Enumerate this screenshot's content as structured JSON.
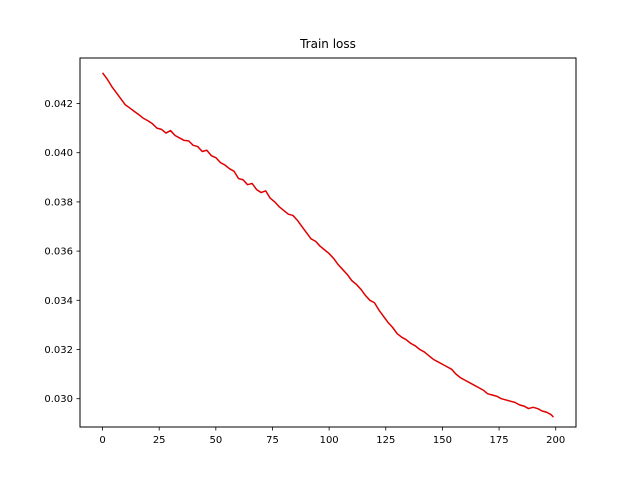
{
  "chart_data": {
    "type": "line",
    "title": "Train loss",
    "xlabel": "",
    "ylabel": "",
    "xlim": [
      -9.95,
      208.95
    ],
    "ylim": [
      0.02885,
      0.04385
    ],
    "x_ticks": [
      0,
      25,
      50,
      75,
      100,
      125,
      150,
      175,
      200
    ],
    "x_tick_labels": [
      "0",
      "25",
      "50",
      "75",
      "100",
      "125",
      "150",
      "175",
      "200"
    ],
    "y_ticks": [
      0.03,
      0.032,
      0.034,
      0.036,
      0.038,
      0.04,
      0.042
    ],
    "y_tick_labels": [
      "0.030",
      "0.032",
      "0.034",
      "0.036",
      "0.038",
      "0.040",
      "0.042"
    ],
    "grid": false,
    "series": [
      {
        "color": "#e00000",
        "x": [
          0,
          2,
          4,
          6,
          8,
          10,
          12,
          14,
          16,
          18,
          20,
          22,
          24,
          26,
          28,
          30,
          32,
          34,
          36,
          38,
          40,
          42,
          44,
          46,
          48,
          50,
          52,
          54,
          56,
          58,
          60,
          62,
          64,
          66,
          68,
          70,
          72,
          74,
          76,
          78,
          80,
          82,
          84,
          86,
          88,
          90,
          92,
          94,
          96,
          98,
          100,
          102,
          104,
          106,
          108,
          110,
          112,
          114,
          116,
          118,
          120,
          122,
          124,
          126,
          128,
          130,
          132,
          134,
          136,
          138,
          140,
          142,
          144,
          146,
          148,
          150,
          152,
          154,
          156,
          158,
          160,
          162,
          164,
          166,
          168,
          170,
          172,
          174,
          176,
          178,
          180,
          182,
          184,
          186,
          188,
          190,
          192,
          194,
          196,
          198,
          199
        ],
        "values": [
          0.04325,
          0.043,
          0.0427,
          0.04245,
          0.0422,
          0.04195,
          0.04182,
          0.04168,
          0.04155,
          0.0414,
          0.0413,
          0.04118,
          0.041,
          0.04095,
          0.0408,
          0.0409,
          0.0407,
          0.0406,
          0.0405,
          0.04048,
          0.0403,
          0.04025,
          0.04005,
          0.0401,
          0.03988,
          0.0398,
          0.0396,
          0.0395,
          0.03935,
          0.03925,
          0.03895,
          0.0389,
          0.0387,
          0.03875,
          0.0385,
          0.03838,
          0.03845,
          0.03815,
          0.038,
          0.0378,
          0.03765,
          0.0375,
          0.03745,
          0.03725,
          0.037,
          0.03675,
          0.0365,
          0.0364,
          0.0362,
          0.03605,
          0.0359,
          0.0357,
          0.03545,
          0.03525,
          0.03505,
          0.0348,
          0.03465,
          0.03445,
          0.0342,
          0.034,
          0.0339,
          0.0336,
          0.03335,
          0.0331,
          0.0329,
          0.03265,
          0.0325,
          0.0324,
          0.03225,
          0.03215,
          0.032,
          0.0319,
          0.03175,
          0.0316,
          0.0315,
          0.0314,
          0.0313,
          0.0312,
          0.031,
          0.03085,
          0.03075,
          0.03065,
          0.03055,
          0.03045,
          0.03035,
          0.0302,
          0.03015,
          0.0301,
          0.03,
          0.02995,
          0.0299,
          0.02985,
          0.02975,
          0.0297,
          0.0296,
          0.02965,
          0.0296,
          0.0295,
          0.02945,
          0.02935,
          0.02925
        ]
      }
    ]
  }
}
